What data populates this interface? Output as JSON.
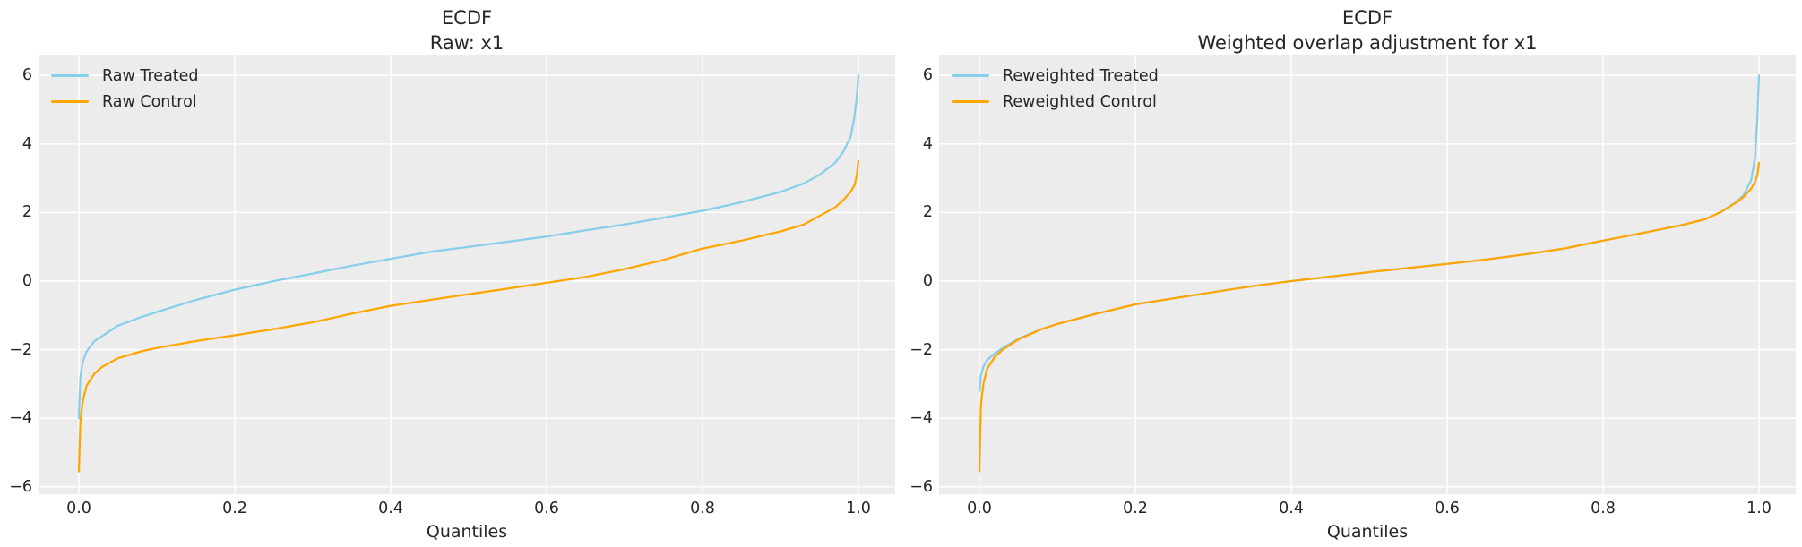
{
  "colors": {
    "figure_background": "#ffffff",
    "plot_background": "#ececec",
    "gridline": "#ffffff",
    "text": "#262626",
    "treated_line": "#87ceeb",
    "control_line": "#ffa500"
  },
  "chart_data": [
    {
      "type": "line",
      "title": "ECDF",
      "subtitle": "Raw: x1",
      "xlabel": "Quantiles",
      "legend_position": "upper-left",
      "grid": true,
      "xlim": [
        -0.05,
        1.05
      ],
      "ylim": [
        -6.15,
        6.6
      ],
      "xticks": [
        {
          "v": 0.0,
          "label": "0.0"
        },
        {
          "v": 0.2,
          "label": "0.2"
        },
        {
          "v": 0.4,
          "label": "0.4"
        },
        {
          "v": 0.6,
          "label": "0.6"
        },
        {
          "v": 0.8,
          "label": "0.8"
        },
        {
          "v": 1.0,
          "label": "1.0"
        }
      ],
      "yticks": [
        {
          "v": 6,
          "label": "6"
        },
        {
          "v": 4,
          "label": "4"
        },
        {
          "v": 2,
          "label": "2"
        },
        {
          "v": 0,
          "label": "0"
        },
        {
          "v": -2,
          "label": "−2"
        },
        {
          "v": -4,
          "label": "−4"
        },
        {
          "v": -6,
          "label": "−6"
        }
      ],
      "series": [
        {
          "name": "Raw Treated",
          "color": "#87ceeb",
          "x": [
            0,
            0.002,
            0.005,
            0.01,
            0.02,
            0.03,
            0.05,
            0.08,
            0.1,
            0.15,
            0.2,
            0.25,
            0.3,
            0.35,
            0.4,
            0.45,
            0.5,
            0.55,
            0.6,
            0.65,
            0.7,
            0.75,
            0.8,
            0.85,
            0.9,
            0.93,
            0.95,
            0.97,
            0.98,
            0.99,
            0.995,
            0.998,
            1.0
          ],
          "y": [
            -4.0,
            -2.8,
            -2.35,
            -2.05,
            -1.75,
            -1.6,
            -1.3,
            -1.05,
            -0.9,
            -0.55,
            -0.25,
            0.0,
            0.22,
            0.45,
            0.65,
            0.85,
            1.0,
            1.15,
            1.3,
            1.48,
            1.65,
            1.85,
            2.05,
            2.3,
            2.6,
            2.85,
            3.1,
            3.45,
            3.75,
            4.2,
            4.8,
            5.4,
            6.0
          ]
        },
        {
          "name": "Raw Control",
          "color": "#ffa500",
          "x": [
            0,
            0.002,
            0.005,
            0.01,
            0.02,
            0.03,
            0.05,
            0.08,
            0.1,
            0.15,
            0.2,
            0.25,
            0.3,
            0.35,
            0.4,
            0.45,
            0.5,
            0.55,
            0.6,
            0.65,
            0.7,
            0.75,
            0.8,
            0.85,
            0.9,
            0.93,
            0.95,
            0.97,
            0.98,
            0.99,
            0.995,
            0.998,
            1.0
          ],
          "y": [
            -5.55,
            -4.1,
            -3.5,
            -3.05,
            -2.7,
            -2.5,
            -2.25,
            -2.05,
            -1.95,
            -1.75,
            -1.58,
            -1.4,
            -1.2,
            -0.95,
            -0.72,
            -0.55,
            -0.38,
            -0.22,
            -0.05,
            0.12,
            0.35,
            0.62,
            0.95,
            1.18,
            1.45,
            1.65,
            1.9,
            2.15,
            2.35,
            2.6,
            2.8,
            3.1,
            3.5
          ]
        }
      ]
    },
    {
      "type": "line",
      "title": "ECDF",
      "subtitle": "Weighted overlap adjustment for x1",
      "xlabel": "Quantiles",
      "legend_position": "upper-left",
      "grid": true,
      "xlim": [
        -0.05,
        1.05
      ],
      "ylim": [
        -6.15,
        6.6
      ],
      "xticks": [
        {
          "v": 0.0,
          "label": "0.0"
        },
        {
          "v": 0.2,
          "label": "0.2"
        },
        {
          "v": 0.4,
          "label": "0.4"
        },
        {
          "v": 0.6,
          "label": "0.6"
        },
        {
          "v": 0.8,
          "label": "0.8"
        },
        {
          "v": 1.0,
          "label": "1.0"
        }
      ],
      "yticks": [
        {
          "v": 6,
          "label": "6"
        },
        {
          "v": 4,
          "label": "4"
        },
        {
          "v": 2,
          "label": "2"
        },
        {
          "v": 0,
          "label": "0"
        },
        {
          "v": -2,
          "label": "−2"
        },
        {
          "v": -4,
          "label": "−4"
        },
        {
          "v": -6,
          "label": "−6"
        }
      ],
      "series": [
        {
          "name": "Reweighted Treated",
          "color": "#87ceeb",
          "x": [
            0,
            0.002,
            0.005,
            0.01,
            0.02,
            0.03,
            0.05,
            0.08,
            0.1,
            0.15,
            0.2,
            0.25,
            0.3,
            0.35,
            0.4,
            0.45,
            0.5,
            0.55,
            0.6,
            0.65,
            0.7,
            0.75,
            0.8,
            0.85,
            0.9,
            0.93,
            0.95,
            0.97,
            0.98,
            0.99,
            0.995,
            0.998,
            1.0
          ],
          "y": [
            -3.2,
            -2.75,
            -2.5,
            -2.3,
            -2.1,
            -1.95,
            -1.68,
            -1.4,
            -1.25,
            -0.95,
            -0.68,
            -0.5,
            -0.32,
            -0.15,
            0.0,
            0.13,
            0.26,
            0.38,
            0.5,
            0.63,
            0.78,
            0.95,
            1.18,
            1.4,
            1.63,
            1.8,
            2.0,
            2.3,
            2.5,
            2.95,
            3.6,
            4.8,
            6.0
          ]
        },
        {
          "name": "Reweighted Control",
          "color": "#ffa500",
          "x": [
            0,
            0.002,
            0.005,
            0.01,
            0.02,
            0.03,
            0.05,
            0.08,
            0.1,
            0.15,
            0.2,
            0.25,
            0.3,
            0.35,
            0.4,
            0.45,
            0.5,
            0.55,
            0.6,
            0.65,
            0.7,
            0.75,
            0.8,
            0.85,
            0.9,
            0.93,
            0.95,
            0.97,
            0.98,
            0.99,
            0.995,
            0.998,
            1.0
          ],
          "y": [
            -5.55,
            -3.6,
            -3.0,
            -2.55,
            -2.2,
            -2.0,
            -1.7,
            -1.4,
            -1.25,
            -0.95,
            -0.68,
            -0.5,
            -0.32,
            -0.15,
            0.0,
            0.13,
            0.26,
            0.38,
            0.5,
            0.63,
            0.78,
            0.95,
            1.18,
            1.4,
            1.63,
            1.8,
            2.0,
            2.28,
            2.45,
            2.7,
            2.9,
            3.1,
            3.45
          ]
        }
      ]
    }
  ]
}
